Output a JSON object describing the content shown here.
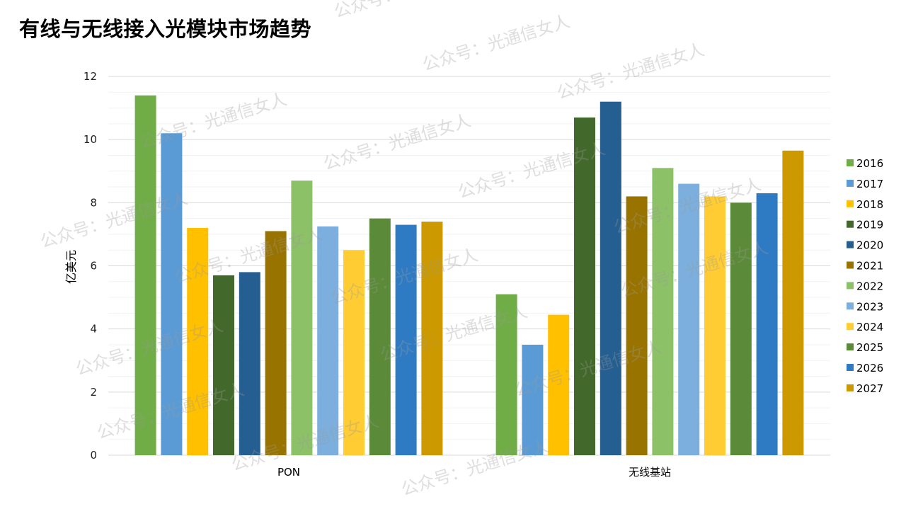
{
  "title": "有线与无线接入光模块市场趋势",
  "watermark": "公众号：光通信女人",
  "chart_data": {
    "type": "bar",
    "title": "",
    "xlabel": "",
    "ylabel": "亿美元",
    "ylim": [
      0,
      12
    ],
    "yticks": [
      0,
      2,
      4,
      6,
      8,
      10,
      12
    ],
    "grid": true,
    "minor_grid": true,
    "legend_position": "right",
    "categories": [
      "PON",
      "无线基站"
    ],
    "series": [
      {
        "name": "2016",
        "color": "#70AD47",
        "values": [
          11.4,
          5.1
        ]
      },
      {
        "name": "2017",
        "color": "#5B9BD5",
        "values": [
          10.2,
          3.5
        ]
      },
      {
        "name": "2018",
        "color": "#FFC000",
        "values": [
          7.2,
          4.45
        ]
      },
      {
        "name": "2019",
        "color": "#43682B",
        "values": [
          5.7,
          10.7
        ]
      },
      {
        "name": "2020",
        "color": "#255E91",
        "values": [
          5.8,
          11.2
        ]
      },
      {
        "name": "2021",
        "color": "#997300",
        "values": [
          7.1,
          8.2
        ]
      },
      {
        "name": "2022",
        "color": "#8CC168",
        "values": [
          8.7,
          9.1
        ]
      },
      {
        "name": "2023",
        "color": "#7CAFDD",
        "values": [
          7.25,
          8.6
        ]
      },
      {
        "name": "2024",
        "color": "#FFCD33",
        "values": [
          6.5,
          8.2
        ]
      },
      {
        "name": "2025",
        "color": "#5B8A38",
        "values": [
          7.5,
          8.0
        ]
      },
      {
        "name": "2026",
        "color": "#2F7BC3",
        "values": [
          7.3,
          8.3
        ]
      },
      {
        "name": "2027",
        "color": "#CC9A00",
        "values": [
          7.4,
          9.65
        ]
      }
    ]
  }
}
